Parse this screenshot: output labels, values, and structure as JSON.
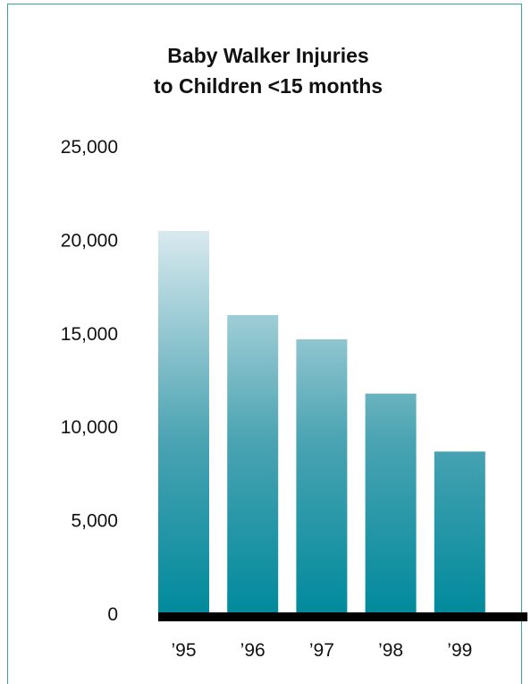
{
  "chart_data": {
    "type": "bar",
    "title": [
      "Baby Walker Injuries",
      "to Children <15 months"
    ],
    "categories": [
      "’95",
      "’96",
      "’97",
      "’98",
      "’99"
    ],
    "values": [
      20500,
      16000,
      14700,
      11800,
      8700
    ],
    "ylim": [
      0,
      25000
    ],
    "yticks": [
      "0",
      "5,000",
      "10,000",
      "15,000",
      "20,000",
      "25,000"
    ],
    "ytick_values": [
      0,
      5000,
      10000,
      15000,
      20000,
      25000
    ],
    "grid": false,
    "colors": {
      "bar_top": "#d8e9ee",
      "bar_mid": "#4aa3b2",
      "bar_bottom": "#008a9c",
      "axis": "#000000",
      "frame": "#3aa0a8"
    }
  }
}
